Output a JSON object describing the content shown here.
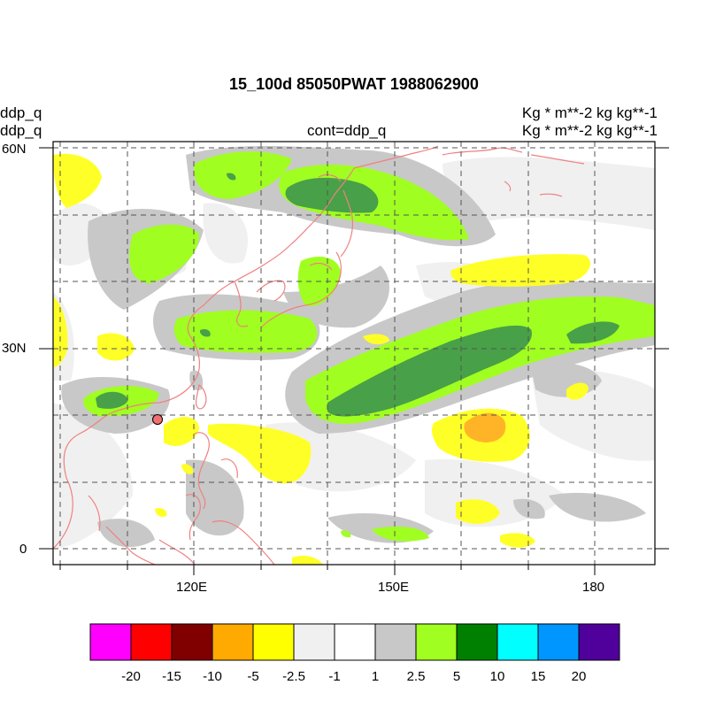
{
  "title": "15_100d 85050PWAT  1988062900",
  "left_labels": [
    "ddp_q",
    "ddp_q"
  ],
  "center_label": "cont=ddp_q",
  "right_labels": [
    "Kg   * m**-2 kg kg**-1",
    "Kg   * m**-2 kg kg**-1"
  ],
  "map": {
    "lat_labels": [
      "60N",
      "30N",
      "0"
    ],
    "lon_labels": [
      "120E",
      "150E",
      "180"
    ],
    "coastline_color": "#f08080",
    "grid_style": "dashed",
    "marker": "red-circle"
  },
  "colorbar": {
    "colors": [
      "#ff00ff",
      "#ff0000",
      "#800000",
      "#ffaa00",
      "#ffff00",
      "#f0f0f0",
      "#ffffff",
      "#c8c8c8",
      "#a0ff20",
      "#008000",
      "#00ffff",
      "#0096ff",
      "#50009b"
    ],
    "labels": [
      "-20",
      "-15",
      "-10",
      "-5",
      "-2.5",
      "-1",
      "1",
      "2.5",
      "5",
      "10",
      "15",
      "20"
    ]
  }
}
